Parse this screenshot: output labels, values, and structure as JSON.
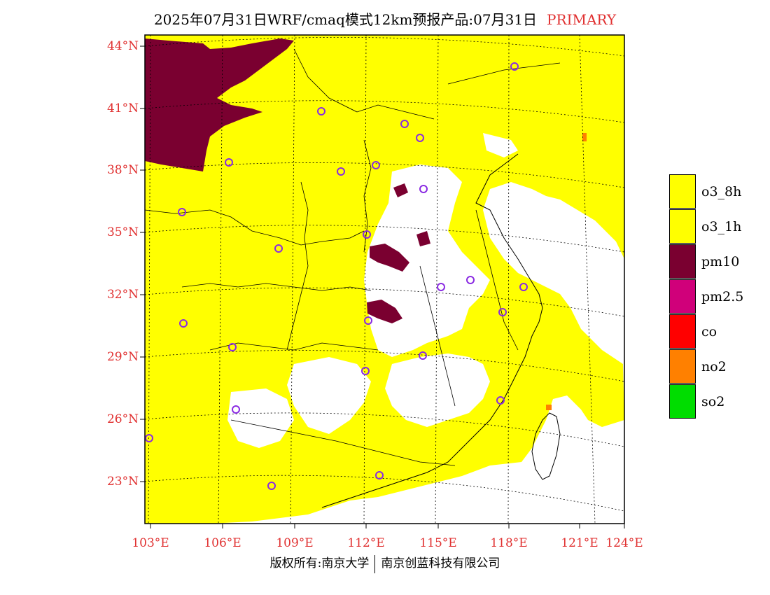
{
  "title": {
    "main": "2025年07月31日WRF/cmaq模式12km预报产品:07月31日",
    "product_type": "PRIMARY",
    "product_type_color": "#e03030"
  },
  "axes": {
    "lat_labels": [
      "44°N",
      "41°N",
      "38°N",
      "35°N",
      "32°N",
      "29°N",
      "26°N",
      "23°N"
    ],
    "lon_labels": [
      "103°E",
      "106°E",
      "109°E",
      "112°E",
      "115°E",
      "118°E",
      "121°E",
      "124°E"
    ],
    "label_color": "#e03030"
  },
  "legend": [
    {
      "label": "o3_8h",
      "color": "#ffff00"
    },
    {
      "label": "o3_1h",
      "color": "#ffff00"
    },
    {
      "label": "pm10",
      "color": "#7a0030"
    },
    {
      "label": "pm2.5",
      "color": "#d0007a"
    },
    {
      "label": "co",
      "color": "#ff0000"
    },
    {
      "label": "no2",
      "color": "#ff8000"
    },
    {
      "label": "so2",
      "color": "#00dd00"
    }
  ],
  "footer": {
    "left": "版权所有:南京大学",
    "right": "南京创蓝科技有限公司"
  },
  "station_marker_color": "#8a2be2"
}
